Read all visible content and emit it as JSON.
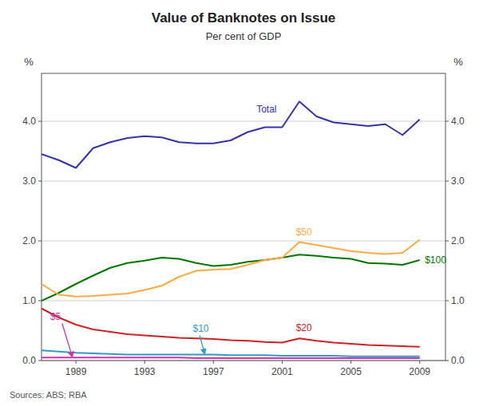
{
  "chart_data": {
    "type": "line",
    "title": "Value of Banknotes on Issue",
    "subtitle": "Per cent of GDP",
    "source": "Sources: ABS; RBA",
    "y_label": "%",
    "y2_label": "%",
    "x": [
      1987,
      1988,
      1989,
      1990,
      1991,
      1992,
      1993,
      1994,
      1995,
      1996,
      1997,
      1998,
      1999,
      2000,
      2001,
      2002,
      2003,
      2004,
      2005,
      2006,
      2007,
      2008,
      2009
    ],
    "xlim": [
      1987,
      2010.5
    ],
    "xticks": [
      1989,
      1993,
      1997,
      2001,
      2005,
      2009
    ],
    "ylim": [
      0,
      4.8
    ],
    "yticks": [
      {
        "value": 0.0,
        "label": "0.0"
      },
      {
        "value": 1.0,
        "label": "1.0"
      },
      {
        "value": 2.0,
        "label": "2.0"
      },
      {
        "value": 3.0,
        "label": "3.0"
      },
      {
        "value": 4.0,
        "label": "4.0"
      }
    ],
    "y2lim": [
      0,
      4.8
    ],
    "y2ticks": [
      {
        "value": 0.0,
        "label": "0.0"
      },
      {
        "value": 1.0,
        "label": "1.0"
      },
      {
        "value": 2.0,
        "label": "2.0"
      },
      {
        "value": 3.0,
        "label": "3.0"
      },
      {
        "value": 4.0,
        "label": "4.0"
      }
    ],
    "grid": true,
    "series": [
      {
        "color": "#3333aa",
        "values": [
          3.45,
          3.35,
          3.22,
          3.55,
          3.65,
          3.72,
          3.75,
          3.73,
          3.65,
          3.63,
          3.63,
          3.68,
          3.82,
          3.9,
          3.9,
          4.33,
          4.08,
          3.98,
          3.95,
          3.92,
          3.95,
          3.77,
          4.03
        ]
      },
      {
        "color": "#007700",
        "values": [
          1.0,
          1.13,
          1.28,
          1.42,
          1.55,
          1.63,
          1.67,
          1.72,
          1.7,
          1.63,
          1.58,
          1.6,
          1.65,
          1.68,
          1.72,
          1.77,
          1.75,
          1.72,
          1.7,
          1.63,
          1.62,
          1.6,
          1.68
        ]
      },
      {
        "color": "#ffaa44",
        "values": [
          1.28,
          1.1,
          1.07,
          1.08,
          1.1,
          1.12,
          1.18,
          1.25,
          1.4,
          1.5,
          1.52,
          1.53,
          1.6,
          1.68,
          1.72,
          1.98,
          1.93,
          1.88,
          1.83,
          1.8,
          1.78,
          1.8,
          2.02
        ]
      },
      {
        "color": "#cc2222",
        "values": [
          0.87,
          0.72,
          0.6,
          0.52,
          0.48,
          0.44,
          0.42,
          0.4,
          0.38,
          0.37,
          0.36,
          0.34,
          0.33,
          0.31,
          0.3,
          0.37,
          0.33,
          0.3,
          0.28,
          0.26,
          0.25,
          0.24,
          0.23
        ]
      },
      {
        "color": "#3399cc",
        "values": [
          0.17,
          0.15,
          0.13,
          0.12,
          0.11,
          0.1,
          0.1,
          0.1,
          0.1,
          0.1,
          0.1,
          0.09,
          0.09,
          0.09,
          0.08,
          0.08,
          0.08,
          0.08,
          0.07,
          0.07,
          0.07,
          0.07,
          0.07
        ]
      },
      {
        "color": "#cc33aa",
        "values": [
          0.05,
          0.05,
          0.05,
          0.05,
          0.05,
          0.05,
          0.05,
          0.05,
          0.05,
          0.04,
          0.04,
          0.04,
          0.04,
          0.04,
          0.04,
          0.04,
          0.04,
          0.04,
          0.04,
          0.04,
          0.04,
          0.04,
          0.04
        ]
      }
    ],
    "annotations": [
      {
        "text": "Total",
        "x": 1999.5,
        "y": 4.15,
        "color": "#3333aa"
      },
      {
        "text": "$100",
        "x": 2009.3,
        "y": 1.63,
        "color": "#007700"
      },
      {
        "text": "$50",
        "x": 2001.8,
        "y": 2.1,
        "color": "#ffaa44"
      },
      {
        "text": "$20",
        "x": 2001.8,
        "y": 0.5,
        "color": "#cc2222"
      },
      {
        "text": "$5",
        "x": 1987.5,
        "y": 0.68,
        "color": "#cc33aa",
        "arrow": {
          "x": 1988.2,
          "y": 0.62,
          "x_tip": 1988.8,
          "y_tip": 0.055
        }
      },
      {
        "text": "$10",
        "x": 1995.8,
        "y": 0.48,
        "color": "#3399cc",
        "arrow": {
          "x": 1996.2,
          "y": 0.42,
          "x_tip": 1996.5,
          "y_tip": 0.105
        }
      }
    ]
  }
}
